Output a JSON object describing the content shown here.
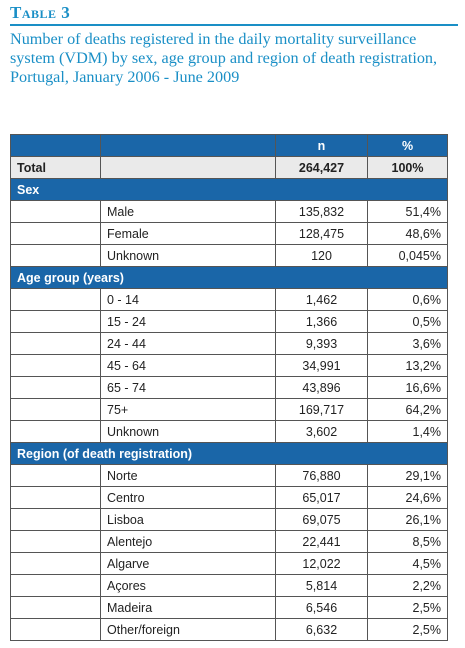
{
  "title": "Table 3",
  "caption": "Number of deaths registered in the daily mortality surveillance system (VDM) by sex, age group and region of death registration, Portugal, January 2006 - June 2009",
  "columns": {
    "n": "n",
    "pct": "%"
  },
  "total": {
    "label": "Total",
    "n": "264,427",
    "pct": "100%"
  },
  "sections": [
    {
      "title": "Sex",
      "rows": [
        {
          "label": "Male",
          "n": "135,832",
          "pct": "51,4%"
        },
        {
          "label": "Female",
          "n": "128,475",
          "pct": "48,6%"
        },
        {
          "label": "Unknown",
          "n": "120",
          "pct": "0,045%"
        }
      ]
    },
    {
      "title": "Age group (years)",
      "rows": [
        {
          "label": "0 - 14",
          "n": "1,462",
          "pct": "0,6%"
        },
        {
          "label": "15 - 24",
          "n": "1,366",
          "pct": "0,5%"
        },
        {
          "label": "24 - 44",
          "n": "9,393",
          "pct": "3,6%"
        },
        {
          "label": "45 - 64",
          "n": "34,991",
          "pct": "13,2%"
        },
        {
          "label": "65 - 74",
          "n": "43,896",
          "pct": "16,6%"
        },
        {
          "label": "75+",
          "n": "169,717",
          "pct": "64,2%"
        },
        {
          "label": "Unknown",
          "n": "3,602",
          "pct": "1,4%"
        }
      ]
    },
    {
      "title": "Region (of death registration)",
      "rows": [
        {
          "label": "Norte",
          "n": "76,880",
          "pct": "29,1%"
        },
        {
          "label": "Centro",
          "n": "65,017",
          "pct": "24,6%"
        },
        {
          "label": "Lisboa",
          "n": "69,075",
          "pct": "26,1%"
        },
        {
          "label": "Alentejo",
          "n": "22,441",
          "pct": "8,5%"
        },
        {
          "label": "Algarve",
          "n": "12,022",
          "pct": "4,5%"
        },
        {
          "label": "Açores",
          "n": "5,814",
          "pct": "2,2%"
        },
        {
          "label": "Madeira",
          "n": "6,546",
          "pct": "2,5%"
        },
        {
          "label": "Other/foreign",
          "n": "6,632",
          "pct": "2,5%"
        }
      ]
    }
  ]
}
